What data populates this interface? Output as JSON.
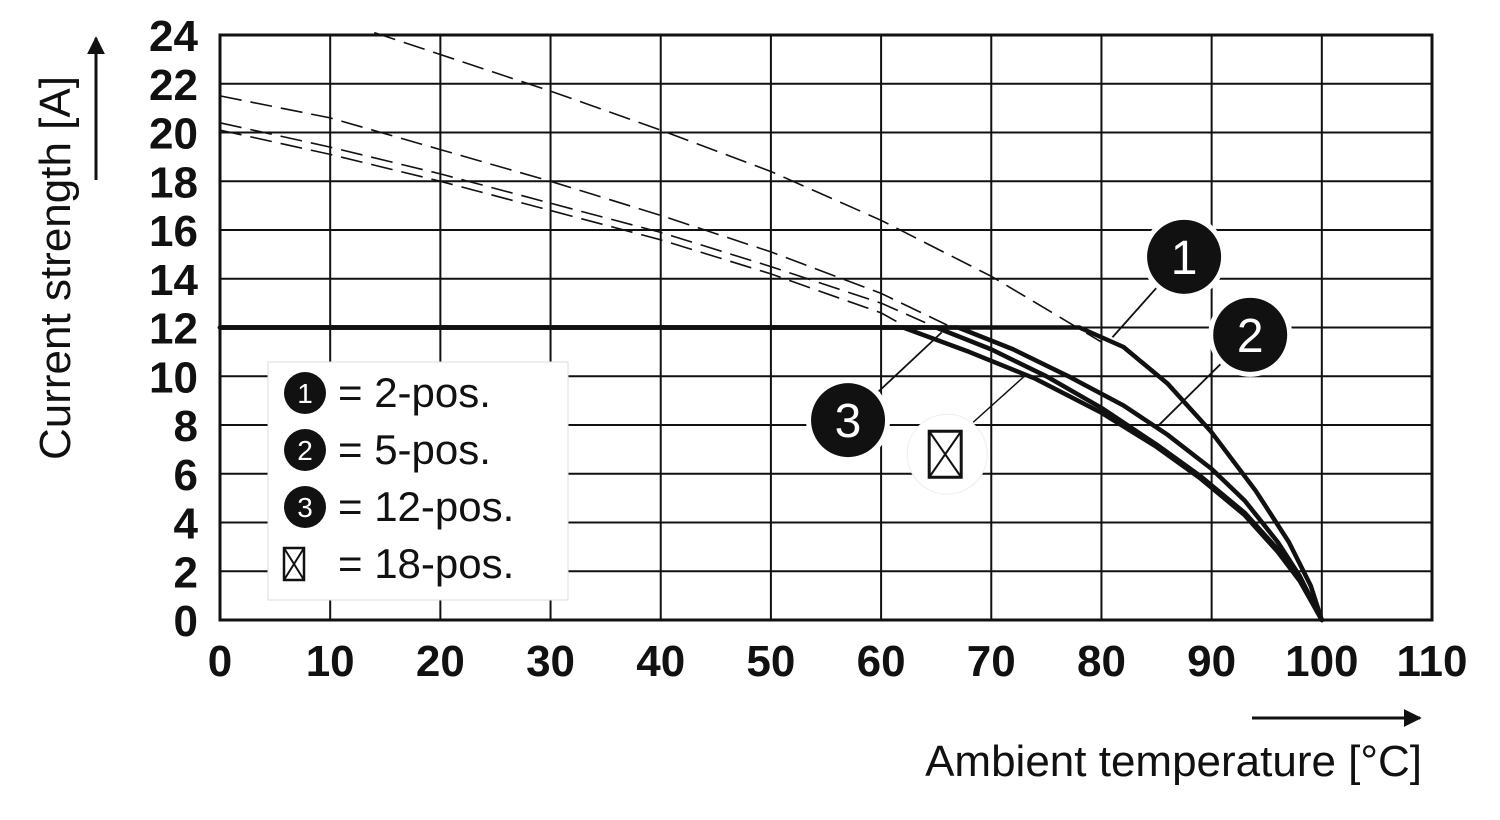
{
  "chart_data": {
    "type": "line",
    "xlabel": "Ambient temperature [°C]",
    "ylabel": "Current strength [A]",
    "xlim": [
      0,
      110
    ],
    "ylim": [
      0,
      24
    ],
    "x_ticks": [
      "0",
      "10",
      "20",
      "30",
      "40",
      "50",
      "60",
      "70",
      "80",
      "90",
      "100",
      "110"
    ],
    "y_ticks": [
      "0",
      "2",
      "4",
      "6",
      "8",
      "10",
      "12",
      "14",
      "16",
      "18",
      "20",
      "22",
      "24"
    ],
    "grid": true,
    "legend_position": "lower-left",
    "legend": [
      {
        "marker": "1",
        "text": "= 2-pos."
      },
      {
        "marker": "2",
        "text": "= 5-pos."
      },
      {
        "marker": "3",
        "text": "= 12-pos."
      },
      {
        "marker": "crossed-box",
        "text": "= 18-pos."
      }
    ],
    "series": [
      {
        "marker": "1",
        "style": "solid",
        "points": [
          [
            0,
            12
          ],
          [
            78,
            12
          ],
          [
            82,
            11.2
          ],
          [
            86,
            9.7
          ],
          [
            90,
            7.7
          ],
          [
            94,
            5.3
          ],
          [
            97,
            3.2
          ],
          [
            99,
            1.4
          ],
          [
            100,
            0
          ]
        ]
      },
      {
        "marker": "2",
        "style": "solid",
        "points": [
          [
            0,
            12
          ],
          [
            67,
            12
          ],
          [
            72,
            11.1
          ],
          [
            77,
            10.0
          ],
          [
            82,
            8.8
          ],
          [
            86,
            7.6
          ],
          [
            90,
            6.2
          ],
          [
            93,
            4.9
          ],
          [
            96,
            3.2
          ],
          [
            98,
            1.8
          ],
          [
            100,
            0
          ]
        ]
      },
      {
        "marker": "3",
        "style": "solid",
        "points": [
          [
            0,
            12
          ],
          [
            65,
            12
          ],
          [
            70,
            11.1
          ],
          [
            75,
            10.0
          ],
          [
            80,
            8.7
          ],
          [
            85,
            7.2
          ],
          [
            89,
            5.9
          ],
          [
            93,
            4.4
          ],
          [
            96,
            2.9
          ],
          [
            98,
            1.7
          ],
          [
            100,
            0
          ]
        ]
      },
      {
        "marker": "crossed-box",
        "style": "solid",
        "points": [
          [
            0,
            12
          ],
          [
            62,
            12
          ],
          [
            68,
            11.0
          ],
          [
            74,
            9.9
          ],
          [
            80,
            8.5
          ],
          [
            85,
            7.1
          ],
          [
            89,
            5.8
          ],
          [
            93,
            4.3
          ],
          [
            96,
            2.8
          ],
          [
            98,
            1.6
          ],
          [
            100,
            0
          ]
        ]
      }
    ],
    "reference_curves": [
      {
        "style": "dashed",
        "points": [
          [
            14,
            24.1
          ],
          [
            30,
            21.7
          ],
          [
            40,
            20.1
          ],
          [
            50,
            18.4
          ],
          [
            60,
            16.4
          ],
          [
            70,
            14.1
          ],
          [
            80,
            11.4
          ]
        ]
      },
      {
        "style": "dashed",
        "points": [
          [
            0,
            21.5
          ],
          [
            10,
            20.6
          ],
          [
            20,
            19.3
          ],
          [
            30,
            18.0
          ],
          [
            40,
            16.6
          ],
          [
            50,
            15.1
          ],
          [
            60,
            13.4
          ],
          [
            66,
            12.1
          ]
        ]
      },
      {
        "style": "dashed",
        "points": [
          [
            0,
            20.4
          ],
          [
            10,
            19.4
          ],
          [
            20,
            18.3
          ],
          [
            30,
            17.1
          ],
          [
            40,
            15.9
          ],
          [
            50,
            14.5
          ],
          [
            60,
            13.0
          ],
          [
            64,
            12.2
          ]
        ]
      },
      {
        "style": "dashed",
        "points": [
          [
            0,
            20.1
          ],
          [
            10,
            19.1
          ],
          [
            20,
            18.0
          ],
          [
            30,
            16.8
          ],
          [
            40,
            15.6
          ],
          [
            50,
            14.2
          ],
          [
            60,
            12.6
          ],
          [
            62,
            12.1
          ]
        ]
      }
    ],
    "callouts": [
      {
        "marker": "1",
        "badge": [
          87.5,
          14.9
        ],
        "target": [
          81,
          11.6
        ]
      },
      {
        "marker": "2",
        "badge": [
          93.5,
          11.7
        ],
        "target": [
          85,
          7.9
        ]
      },
      {
        "marker": "3",
        "badge": [
          57,
          8.2
        ],
        "target": [
          65.5,
          11.8
        ]
      },
      {
        "marker": "crossed-box",
        "badge": [
          66,
          6.8
        ],
        "target": [
          73,
          10.0
        ]
      }
    ]
  }
}
